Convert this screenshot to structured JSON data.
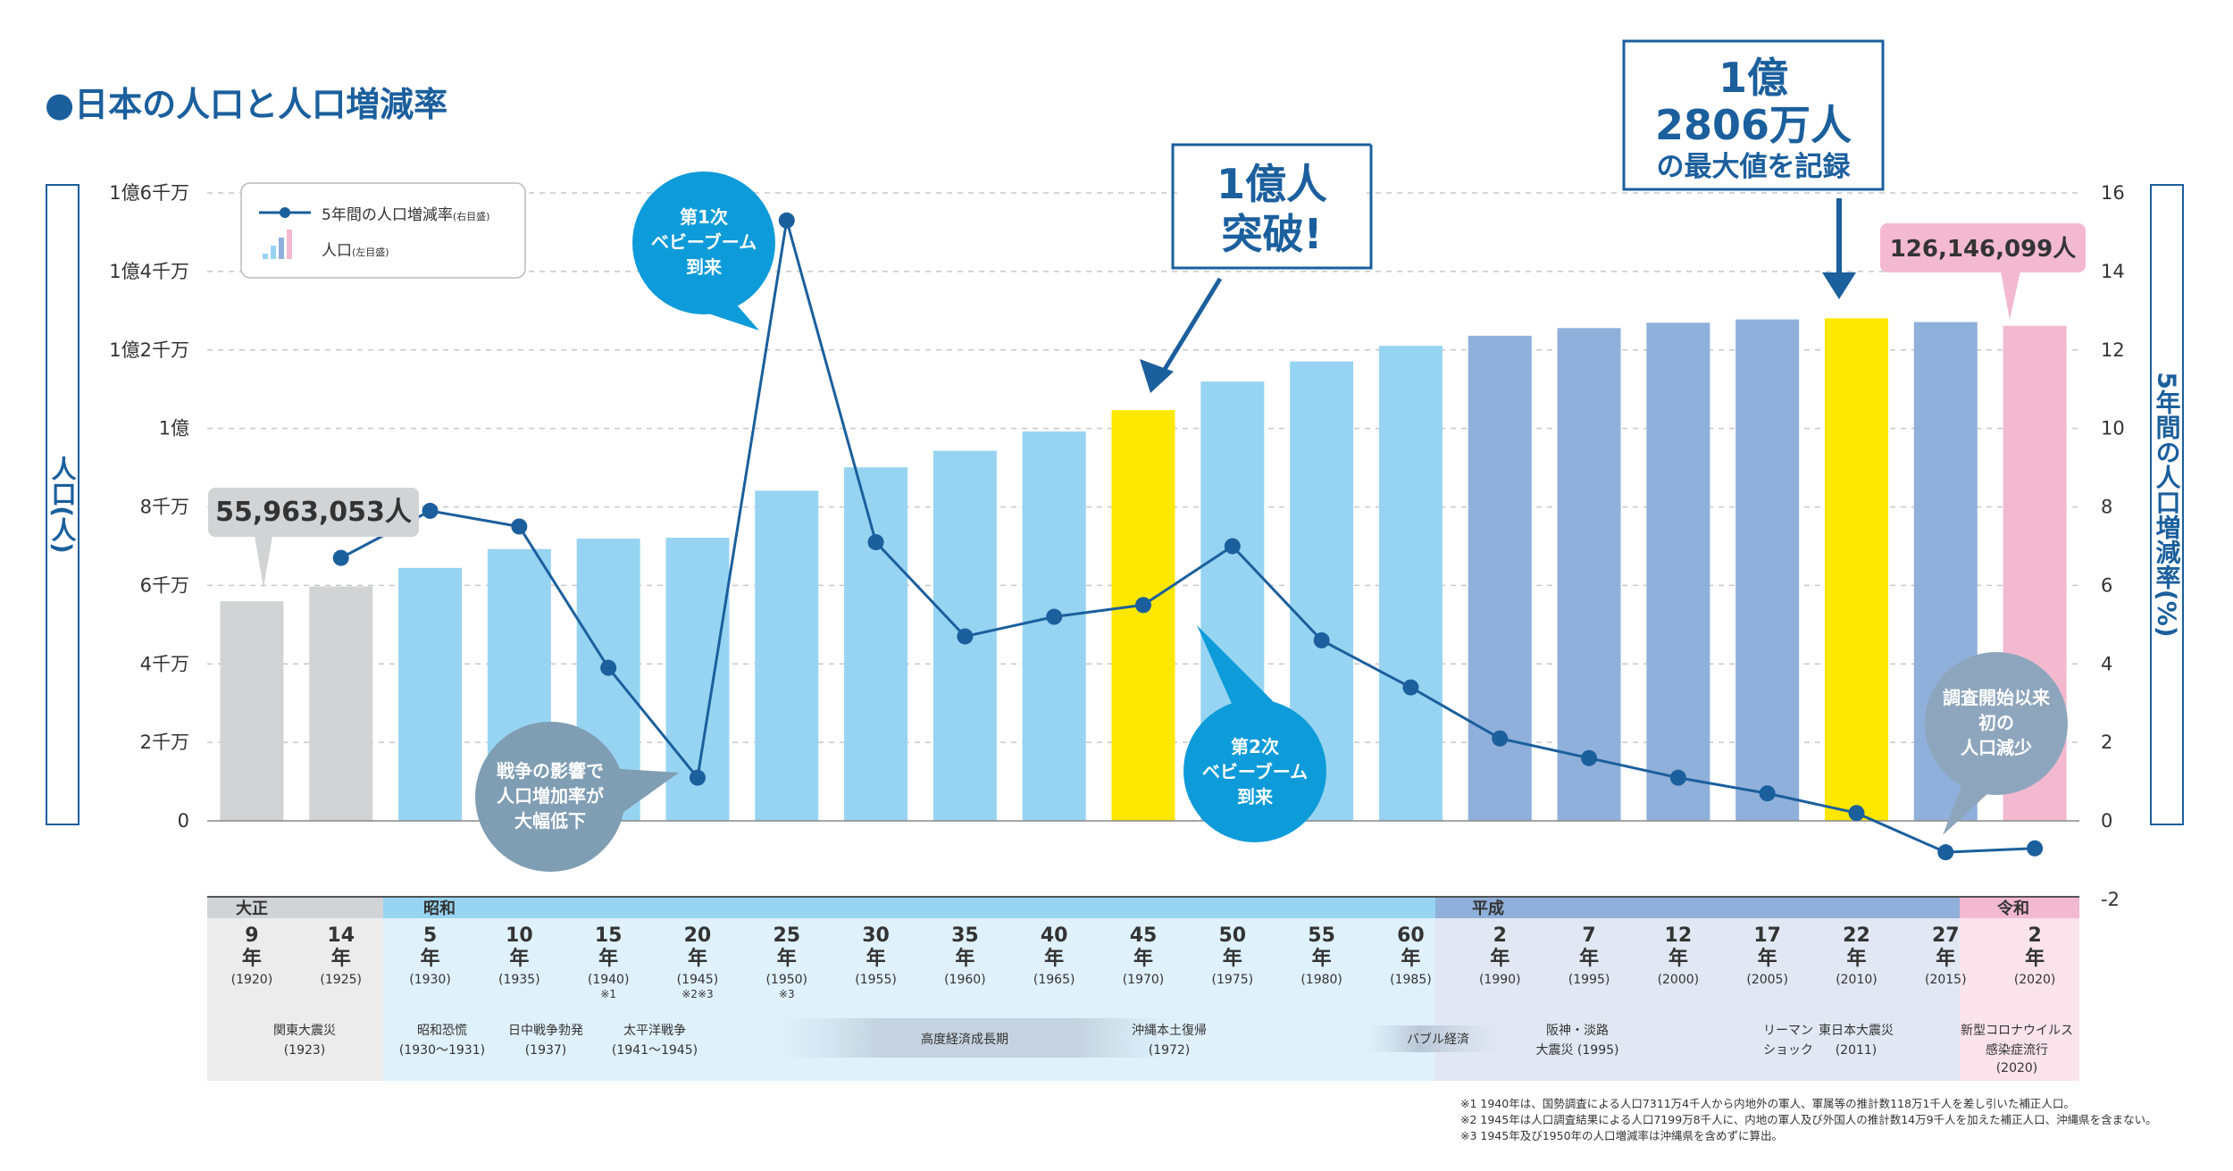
{
  "title": "●日本の人口と人口増減率",
  "legend": {
    "rate_label": "5年間の人口増減率",
    "rate_note": "(右目盛)",
    "pop_label": "人口",
    "pop_note": "(左目盛)"
  },
  "left_axis_title": "人口(人)",
  "right_axis_title": "5年間の人口増減率(%)",
  "left_ticks": [
    "0",
    "2千万",
    "4千万",
    "6千万",
    "8千万",
    "1億",
    "1億2千万",
    "1億4千万",
    "1億6千万"
  ],
  "right_ticks": [
    "-2",
    "0",
    "2",
    "4",
    "6",
    "8",
    "10",
    "12",
    "14",
    "16"
  ],
  "callouts": {
    "first_pop": "55,963,053人",
    "last_pop": "126,146,099人",
    "oku_line1": "1億人",
    "oku_line2": "突破!",
    "max_line1": "1億",
    "max_line2": "2806万人",
    "max_line3": "の最大値を記録",
    "boom1": [
      "第1次",
      "ベビーブーム",
      "到来"
    ],
    "boom2": [
      "第2次",
      "ベビーブーム",
      "到来"
    ],
    "war": [
      "戦争の影響で",
      "人口増加率が",
      "大幅低下"
    ],
    "decline": [
      "調査開始以来",
      "初の",
      "人口減少"
    ]
  },
  "eras": [
    "大正",
    "昭和",
    "平成",
    "令和"
  ],
  "events": {
    "kanto_1": "関東大震災",
    "kanto_2": "(1923)",
    "showa_1": "昭和恐慌",
    "showa_2": "(1930〜1931)",
    "sino_1": "日中戦争勃発",
    "sino_2": "(1937)",
    "pacific_1": "太平洋戦争",
    "pacific_2": "(1941〜1945)",
    "growth": "高度経済成長期",
    "okinawa_1": "沖縄本土復帰",
    "okinawa_2": "(1972)",
    "bubble": "バブル経済",
    "hanshin_1": "阪神・淡路",
    "hanshin_2": "大震災 (1995)",
    "lehman_1": "リーマン",
    "lehman_2": "ショック",
    "tohoku_1": "東日本大震災",
    "tohoku_2": "(2011)",
    "covid_1": "新型コロナウイルス",
    "covid_2": "感染症流行",
    "covid_3": "(2020)"
  },
  "footnotes": [
    "※1 1940年は、国勢調査による人口7311万4千人から内地外の軍人、軍属等の推計数118万1千人を差し引いた補正人口。",
    "※2 1945年は人口調査結果による人口7199万8千人に、内地の軍人及び外国人の推計数14万9千人を加えた補正人口、沖縄県を含まない。",
    "※3 1945年及び1950年の人口増減率は沖縄県を含めずに算出。"
  ],
  "colors": {
    "taisho": "#d2d3d5",
    "showa": "#97d4f2",
    "heisei": "#8fb0da",
    "reiwa": "#f3b9cf",
    "highlight": "#ffe800",
    "line": "#1b5f9d",
    "dark_blue": "#1b5f9d",
    "bubble_blue": "#0e9bd9",
    "bubble_gray": "#7f9db3",
    "bubble_gray2": "#8ea6bd"
  },
  "chart_data": {
    "type": "bar",
    "title": "日本の人口と人口増減率",
    "categories": [
      "9年(1920)",
      "14年(1925)",
      "5年(1930)",
      "10年(1935)",
      "15年(1940)",
      "20年(1945)",
      "25年(1950)",
      "30年(1955)",
      "35年(1960)",
      "40年(1965)",
      "45年(1970)",
      "50年(1975)",
      "55年(1980)",
      "60年(1985)",
      "2年(1990)",
      "7年(1995)",
      "12年(2000)",
      "17年(2005)",
      "22年(2010)",
      "27年(2015)",
      "2年(2020)"
    ],
    "era_of_category": [
      "大正",
      "大正",
      "昭和",
      "昭和",
      "昭和",
      "昭和",
      "昭和",
      "昭和",
      "昭和",
      "昭和",
      "昭和",
      "昭和",
      "昭和",
      "昭和",
      "平成",
      "平成",
      "平成",
      "平成",
      "平成",
      "平成",
      "令和"
    ],
    "year_labels": [
      "9",
      "14",
      "5",
      "10",
      "15",
      "20",
      "25",
      "30",
      "35",
      "40",
      "45",
      "50",
      "55",
      "60",
      "2",
      "7",
      "12",
      "17",
      "22",
      "27",
      "2"
    ],
    "year_unit": "年",
    "ad_labels": [
      "(1920)",
      "(1925)",
      "(1930)",
      "(1935)",
      "(1940)",
      "(1945)",
      "(1950)",
      "(1955)",
      "(1960)",
      "(1965)",
      "(1970)",
      "(1975)",
      "(1980)",
      "(1985)",
      "(1990)",
      "(1995)",
      "(2000)",
      "(2005)",
      "(2010)",
      "(2015)",
      "(2020)"
    ],
    "notes": [
      "",
      "",
      "",
      "",
      "※1",
      "※2※3",
      "※3",
      "",
      "",
      "",
      "",
      "",
      "",
      "",
      "",
      "",
      "",
      "",
      "",
      "",
      ""
    ],
    "highlighted_categories": [
      10,
      18
    ],
    "series": [
      {
        "name": "人口",
        "axis": "left",
        "values": [
          55963053,
          59736822,
          64450005,
          69254148,
          71933000,
          72147000,
          84114574,
          90076594,
          94301623,
          99209137,
          104665171,
          111939643,
          117060396,
          121048923,
          123611167,
          125570246,
          126925843,
          127767994,
          128057352,
          127094745,
          126146099
        ]
      },
      {
        "name": "5年間の人口増減率",
        "axis": "right",
        "type": "line",
        "values": [
          null,
          6.7,
          7.9,
          7.5,
          3.9,
          1.1,
          15.3,
          7.1,
          4.7,
          5.2,
          5.5,
          7.0,
          4.6,
          3.4,
          2.1,
          1.6,
          1.1,
          0.7,
          0.2,
          -0.8,
          -0.7
        ]
      }
    ],
    "ylim_left": [
      0,
      160000000
    ],
    "ylim_right": [
      -2,
      16
    ],
    "ylabel_left": "人口(人)",
    "ylabel_right": "5年間の人口増減率(%)",
    "grid": true
  }
}
